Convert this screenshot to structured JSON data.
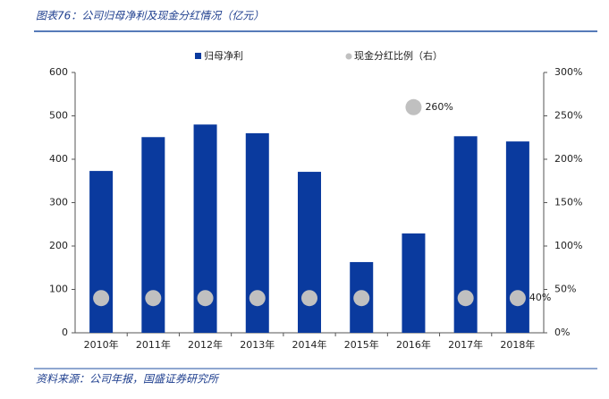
{
  "chart_data": {
    "type": "bar_scatter",
    "title": "图表76：公司归母净利及现金分红情况（亿元）",
    "source": "资料来源：公司年报，国盛证券研究所",
    "categories": [
      "2010年",
      "2011年",
      "2012年",
      "2013年",
      "2014年",
      "2015年",
      "2016年",
      "2017年",
      "2018年"
    ],
    "series": [
      {
        "name": "归母净利",
        "color": "#0a3a9e",
        "type": "bar",
        "values": [
          373,
          451,
          480,
          460,
          371,
          163,
          229,
          453,
          441
        ]
      },
      {
        "name": "现金分红比例（右）",
        "color": "#c0c0c0",
        "type": "scatter",
        "axis": "y2",
        "values": [
          40,
          40,
          40,
          40,
          40,
          40,
          260,
          40,
          40
        ],
        "value_labels": [
          null,
          null,
          null,
          null,
          null,
          null,
          "260%",
          null,
          "40%"
        ]
      }
    ],
    "ylim": [
      0,
      600
    ],
    "yticks": [
      0,
      100,
      200,
      300,
      400,
      500,
      600
    ],
    "y2lim": [
      0,
      300
    ],
    "y2ticks": [
      {
        "value": 0,
        "label": "0%"
      },
      {
        "value": 50,
        "label": "50%"
      },
      {
        "value": 100,
        "label": "100%"
      },
      {
        "value": 150,
        "label": "150%"
      },
      {
        "value": 200,
        "label": "200%"
      },
      {
        "value": 250,
        "label": "250%"
      },
      {
        "value": 300,
        "label": "300%"
      }
    ]
  }
}
